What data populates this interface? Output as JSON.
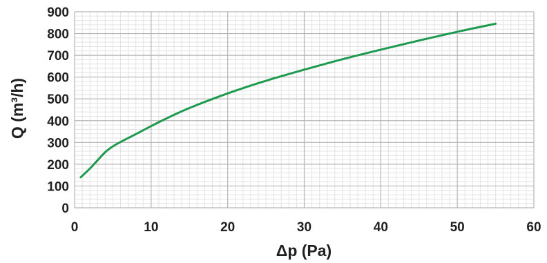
{
  "chart_data": {
    "type": "line",
    "title": "",
    "xlabel": "Δp (Pa)",
    "ylabel": "Q (m³/h)",
    "xlim": [
      0,
      60
    ],
    "ylim": [
      0,
      900
    ],
    "x_ticks": [
      0,
      10,
      20,
      30,
      40,
      50,
      60
    ],
    "y_ticks": [
      0,
      100,
      200,
      300,
      400,
      500,
      600,
      700,
      800,
      900
    ],
    "x_minor_step": 1,
    "y_minor_step": 20,
    "grid": true,
    "legend": "none",
    "series": [
      {
        "color": "#1e9a4e",
        "x": [
          0.8,
          2,
          3,
          4,
          5,
          6,
          8,
          10,
          12,
          15,
          20,
          25,
          30,
          35,
          40,
          45,
          50,
          55
        ],
        "y": [
          140,
          180,
          218,
          255,
          282,
          302,
          338,
          375,
          410,
          458,
          525,
          583,
          634,
          682,
          726,
          768,
          808,
          845
        ]
      }
    ]
  },
  "colors": {
    "major_grid": "#b4b4b4",
    "minor_grid": "#e3e3e3",
    "text": "#1f1f1f"
  }
}
